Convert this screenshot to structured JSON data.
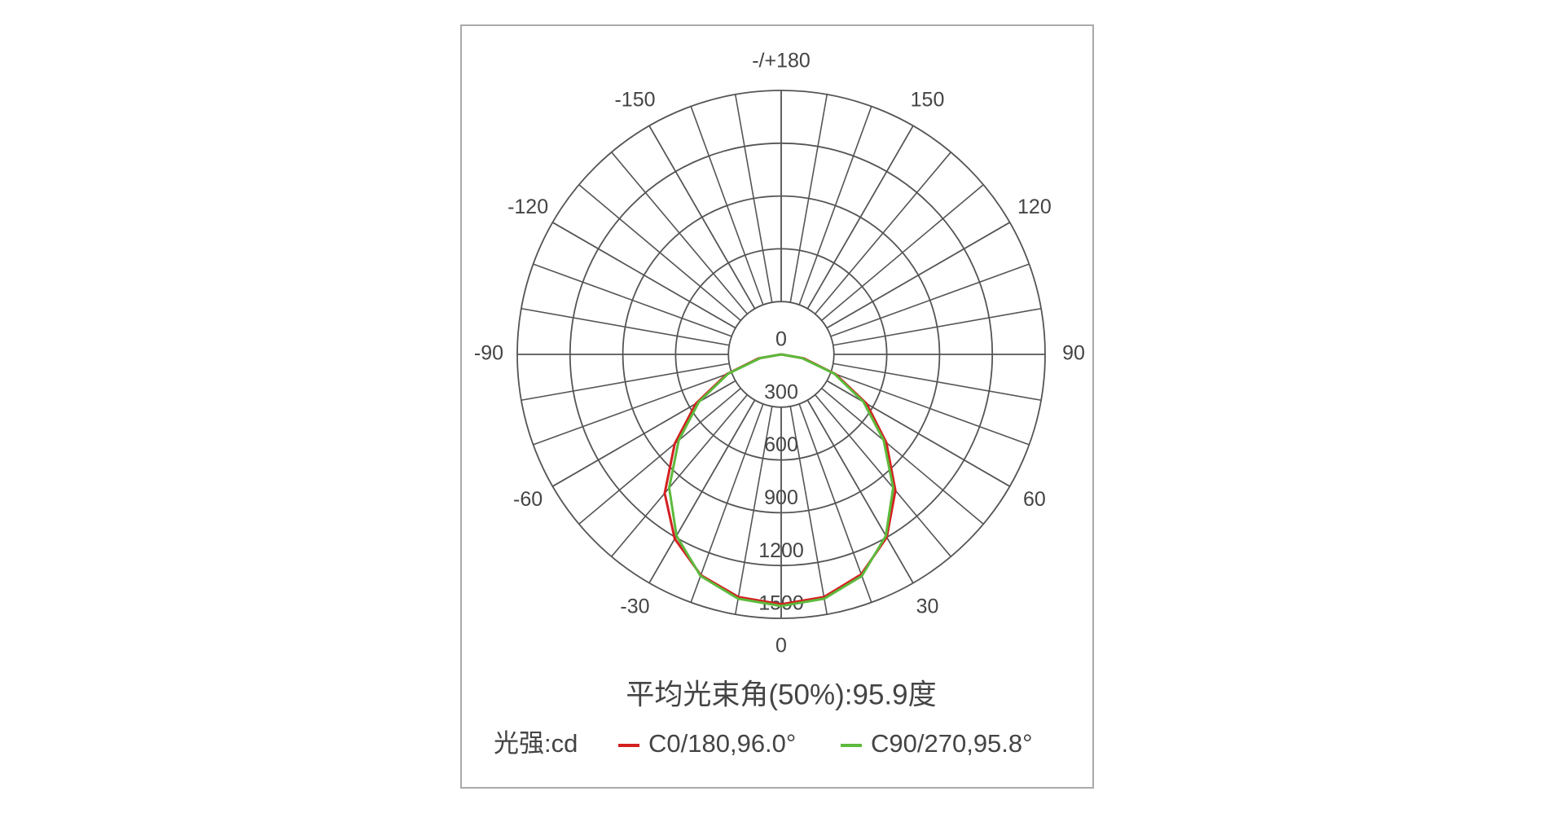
{
  "chart_data": {
    "type": "polar",
    "title": "平均光束角(50%):95.9度",
    "legend_label": "光强:cd",
    "angles": [
      -90,
      -80,
      -70,
      -60,
      -50,
      -40,
      -30,
      -20,
      -10,
      0,
      10,
      20,
      30,
      40,
      50,
      60,
      70,
      80,
      90
    ],
    "series": [
      {
        "name": "C0/180,96.0°",
        "color": "#d42020",
        "values": [
          0,
          130,
          330,
          560,
          790,
          1030,
          1210,
          1335,
          1400,
          1420,
          1400,
          1330,
          1200,
          1010,
          780,
          560,
          330,
          130,
          0
        ]
      },
      {
        "name": "C90/270,95.8°",
        "color": "#5cba3c",
        "values": [
          0,
          120,
          320,
          540,
          760,
          990,
          1190,
          1340,
          1410,
          1430,
          1410,
          1340,
          1190,
          990,
          760,
          540,
          320,
          120,
          0
        ]
      }
    ],
    "rlim": [
      0,
      1500
    ],
    "rticks": [
      0,
      300,
      600,
      900,
      1200,
      1500
    ],
    "angle_ticks": [
      0,
      30,
      60,
      90,
      120,
      150,
      {
        "value": 180,
        "label": "-/+180"
      },
      -150,
      -120,
      -90,
      -60,
      -30
    ],
    "grid": true
  }
}
